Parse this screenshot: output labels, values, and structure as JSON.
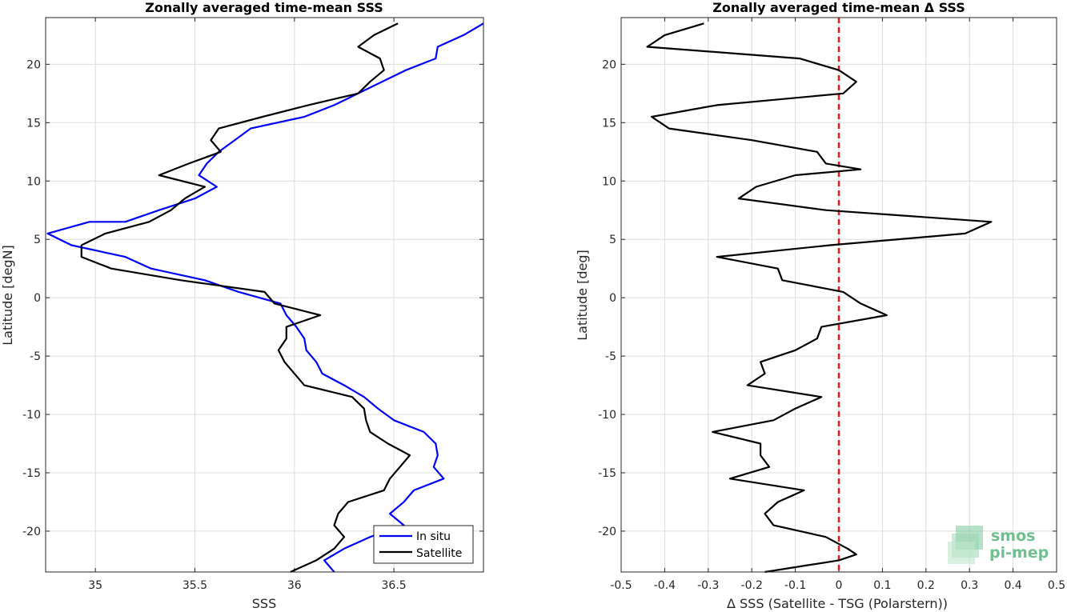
{
  "chart_data": [
    {
      "type": "line",
      "title": "Zonally averaged time-mean SSS",
      "xlabel": "SSS",
      "ylabel": "Latitude [degN]",
      "xlim": [
        34.75,
        36.95
      ],
      "ylim": [
        -23.5,
        24
      ],
      "x_ticks": [
        35,
        35.5,
        36,
        36.5
      ],
      "x_tick_labels": [
        "35",
        "35.5",
        "36",
        "36.5"
      ],
      "y_ticks": [
        -20,
        -15,
        -10,
        -5,
        0,
        5,
        10,
        15,
        20
      ],
      "y_tick_labels": [
        "-20",
        "-15",
        "-10",
        "-5",
        "0",
        "5",
        "10",
        "15",
        "20"
      ],
      "grid": true,
      "legend_position": "bottom-right",
      "series": [
        {
          "name": "In situ",
          "color": "#0000ff",
          "points": [
            [
              36.95,
              23.5
            ],
            [
              36.85,
              22.5
            ],
            [
              36.72,
              21.5
            ],
            [
              36.71,
              20.5
            ],
            [
              36.56,
              19.5
            ],
            [
              36.44,
              18.5
            ],
            [
              36.32,
              17.5
            ],
            [
              36.2,
              16.5
            ],
            [
              36.05,
              15.5
            ],
            [
              35.78,
              14.5
            ],
            [
              35.7,
              13.5
            ],
            [
              35.62,
              12.5
            ],
            [
              35.56,
              11.5
            ],
            [
              35.52,
              10.5
            ],
            [
              35.61,
              9.5
            ],
            [
              35.5,
              8.5
            ],
            [
              35.32,
              7.5
            ],
            [
              35.15,
              6.5
            ],
            [
              34.97,
              6.5
            ],
            [
              34.76,
              5.5
            ],
            [
              34.88,
              4.5
            ],
            [
              35.15,
              3.5
            ],
            [
              35.28,
              2.5
            ],
            [
              35.55,
              1.5
            ],
            [
              35.72,
              0.5
            ],
            [
              35.93,
              -0.5
            ],
            [
              35.96,
              -1.5
            ],
            [
              36.01,
              -2.5
            ],
            [
              36.05,
              -3.5
            ],
            [
              36.06,
              -4.5
            ],
            [
              36.11,
              -5.5
            ],
            [
              36.14,
              -6.5
            ],
            [
              36.25,
              -7.5
            ],
            [
              36.35,
              -8.5
            ],
            [
              36.42,
              -9.5
            ],
            [
              36.5,
              -10.5
            ],
            [
              36.65,
              -11.5
            ],
            [
              36.71,
              -12.5
            ],
            [
              36.72,
              -13.5
            ],
            [
              36.7,
              -14.5
            ],
            [
              36.75,
              -15.5
            ],
            [
              36.6,
              -16.5
            ],
            [
              36.55,
              -17.5
            ],
            [
              36.48,
              -18.5
            ],
            [
              36.55,
              -19.5
            ],
            [
              36.38,
              -20.5
            ],
            [
              36.25,
              -21.5
            ],
            [
              36.15,
              -22.5
            ],
            [
              36.2,
              -23.5
            ]
          ]
        },
        {
          "name": "Satellite",
          "color": "#000000",
          "points": [
            [
              36.52,
              23.5
            ],
            [
              36.4,
              22.5
            ],
            [
              36.32,
              21.5
            ],
            [
              36.43,
              20.5
            ],
            [
              36.45,
              19.5
            ],
            [
              36.38,
              18.5
            ],
            [
              36.32,
              17.5
            ],
            [
              36.07,
              16.5
            ],
            [
              35.84,
              15.5
            ],
            [
              35.62,
              14.5
            ],
            [
              35.58,
              13.5
            ],
            [
              35.63,
              12.5
            ],
            [
              35.47,
              11.5
            ],
            [
              35.32,
              10.5
            ],
            [
              35.55,
              9.5
            ],
            [
              35.45,
              8.5
            ],
            [
              35.38,
              7.5
            ],
            [
              35.27,
              6.5
            ],
            [
              35.05,
              5.5
            ],
            [
              34.93,
              4.5
            ],
            [
              34.93,
              3.5
            ],
            [
              35.08,
              2.5
            ],
            [
              35.43,
              1.5
            ],
            [
              35.85,
              0.5
            ],
            [
              35.9,
              -0.5
            ],
            [
              36.13,
              -1.5
            ],
            [
              35.96,
              -2.5
            ],
            [
              35.96,
              -3.5
            ],
            [
              35.92,
              -4.5
            ],
            [
              35.95,
              -5.5
            ],
            [
              36.0,
              -6.5
            ],
            [
              36.05,
              -7.5
            ],
            [
              36.29,
              -8.5
            ],
            [
              36.35,
              -9.5
            ],
            [
              36.36,
              -10.5
            ],
            [
              36.38,
              -11.5
            ],
            [
              36.47,
              -12.5
            ],
            [
              36.58,
              -13.5
            ],
            [
              36.53,
              -14.5
            ],
            [
              36.48,
              -15.5
            ],
            [
              36.45,
              -16.5
            ],
            [
              36.27,
              -17.5
            ],
            [
              36.22,
              -18.5
            ],
            [
              36.2,
              -19.5
            ],
            [
              36.25,
              -20.5
            ],
            [
              36.2,
              -21.5
            ],
            [
              36.11,
              -22.5
            ],
            [
              35.98,
              -23.5
            ]
          ]
        }
      ]
    },
    {
      "type": "line",
      "title": "Zonally averaged time-mean Δ SSS",
      "xlabel": "Δ SSS (Satellite - TSG (Polarstern))",
      "ylabel": "Latitude [deg]",
      "xlim": [
        -0.5,
        0.5
      ],
      "ylim": [
        -23.5,
        24
      ],
      "x_ticks": [
        -0.5,
        -0.4,
        -0.3,
        -0.2,
        -0.1,
        0,
        0.1,
        0.2,
        0.3,
        0.4,
        0.5
      ],
      "x_tick_labels": [
        "-0.5",
        "-0.4",
        "-0.3",
        "-0.2",
        "-0.1",
        "0",
        "0.1",
        "0.2",
        "0.3",
        "0.4",
        "0.5"
      ],
      "y_ticks": [
        -20,
        -15,
        -10,
        -5,
        0,
        5,
        10,
        15,
        20
      ],
      "y_tick_labels": [
        "-20",
        "-15",
        "-10",
        "-5",
        "0",
        "5",
        "10",
        "15",
        "20"
      ],
      "grid": true,
      "reference_line": {
        "x": 0,
        "color": "#e8191a",
        "style": "dashed"
      },
      "series": [
        {
          "color": "#000000",
          "points": [
            [
              -0.31,
              23.5
            ],
            [
              -0.4,
              22.5
            ],
            [
              -0.44,
              21.5
            ],
            [
              -0.09,
              20.5
            ],
            [
              -0.0,
              19.5
            ],
            [
              0.04,
              18.5
            ],
            [
              0.01,
              17.5
            ],
            [
              -0.28,
              16.5
            ],
            [
              -0.43,
              15.5
            ],
            [
              -0.39,
              14.5
            ],
            [
              -0.2,
              13.5
            ],
            [
              -0.05,
              12.5
            ],
            [
              -0.03,
              11.5
            ],
            [
              0.05,
              11.0
            ],
            [
              -0.1,
              10.5
            ],
            [
              -0.19,
              9.5
            ],
            [
              -0.23,
              8.5
            ],
            [
              -0.03,
              7.5
            ],
            [
              0.35,
              6.5
            ],
            [
              0.29,
              5.5
            ],
            [
              -0.02,
              4.5
            ],
            [
              -0.28,
              3.5
            ],
            [
              -0.14,
              2.5
            ],
            [
              -0.13,
              1.5
            ],
            [
              0.01,
              0.5
            ],
            [
              0.05,
              -0.5
            ],
            [
              0.11,
              -1.5
            ],
            [
              -0.04,
              -2.5
            ],
            [
              -0.05,
              -3.5
            ],
            [
              -0.1,
              -4.5
            ],
            [
              -0.18,
              -5.5
            ],
            [
              -0.17,
              -6.5
            ],
            [
              -0.21,
              -7.5
            ],
            [
              -0.04,
              -8.5
            ],
            [
              -0.1,
              -9.5
            ],
            [
              -0.15,
              -10.5
            ],
            [
              -0.29,
              -11.5
            ],
            [
              -0.18,
              -12.5
            ],
            [
              -0.18,
              -13.5
            ],
            [
              -0.16,
              -14.5
            ],
            [
              -0.25,
              -15.5
            ],
            [
              -0.08,
              -16.5
            ],
            [
              -0.14,
              -17.5
            ],
            [
              -0.17,
              -18.5
            ],
            [
              -0.15,
              -19.5
            ],
            [
              -0.03,
              -20.5
            ],
            [
              0.02,
              -21.5
            ],
            [
              0.04,
              -22.0
            ],
            [
              0.0,
              -22.5
            ],
            [
              -0.17,
              -23.5
            ]
          ]
        }
      ]
    }
  ],
  "legend": {
    "items": [
      {
        "label": "In situ",
        "color": "#0000ff"
      },
      {
        "label": "Satellite",
        "color": "#000000"
      }
    ]
  },
  "logo": {
    "line1": "smos",
    "line2": "pi-mep",
    "color": "#6fbf8f"
  }
}
